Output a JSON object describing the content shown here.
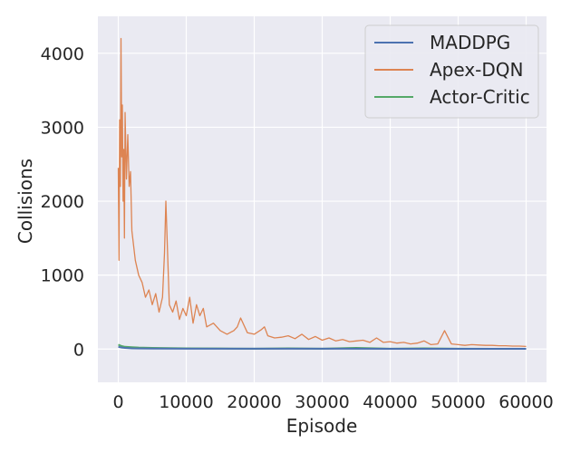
{
  "chart_data": {
    "type": "line",
    "xlabel": "Episode",
    "ylabel": "Collisions",
    "xlim": [
      -3000,
      63000
    ],
    "ylim": [
      -450,
      4500
    ],
    "x_ticks": [
      0,
      10000,
      20000,
      30000,
      40000,
      50000,
      60000
    ],
    "x_tick_labels": [
      "0",
      "10000",
      "20000",
      "30000",
      "40000",
      "50000",
      "60000"
    ],
    "y_ticks": [
      0,
      1000,
      2000,
      3000,
      4000
    ],
    "y_tick_labels": [
      "0",
      "1000",
      "2000",
      "3000",
      "4000"
    ],
    "grid": true,
    "legend_position": "top-right",
    "series": [
      {
        "name": "MADDPG",
        "color": "#4c72b0",
        "x": [
          0,
          500,
          1000,
          2000,
          3000,
          5000,
          10000,
          20000,
          30000,
          40000,
          50000,
          60000
        ],
        "y": [
          30,
          20,
          15,
          10,
          8,
          6,
          5,
          4,
          4,
          3,
          3,
          3
        ]
      },
      {
        "name": "Apex-DQN",
        "color": "#dd8452",
        "x": [
          0,
          100,
          200,
          300,
          400,
          500,
          600,
          700,
          800,
          900,
          1000,
          1200,
          1400,
          1600,
          1800,
          2000,
          2500,
          3000,
          3500,
          4000,
          4500,
          5000,
          5500,
          6000,
          6500,
          6800,
          7000,
          7500,
          8000,
          8500,
          9000,
          9500,
          10000,
          10500,
          11000,
          11500,
          12000,
          12500,
          13000,
          14000,
          15000,
          16000,
          17000,
          17500,
          18000,
          19000,
          20000,
          21000,
          21500,
          22000,
          23000,
          24000,
          25000,
          26000,
          27000,
          28000,
          29000,
          30000,
          31000,
          32000,
          33000,
          34000,
          35000,
          36000,
          37000,
          38000,
          39000,
          40000,
          41000,
          42000,
          43000,
          44000,
          45000,
          46000,
          47000,
          48000,
          49000,
          50000,
          51000,
          52000,
          53000,
          54000,
          55000,
          56000,
          57000,
          58000,
          59000,
          60000
        ],
        "y": [
          2450,
          1200,
          3100,
          2200,
          4200,
          2600,
          3300,
          2000,
          2700,
          1500,
          3200,
          2300,
          2900,
          2200,
          2400,
          1600,
          1200,
          1000,
          900,
          700,
          800,
          600,
          750,
          500,
          700,
          1300,
          2000,
          600,
          500,
          650,
          400,
          550,
          450,
          700,
          350,
          600,
          450,
          550,
          300,
          350,
          250,
          200,
          250,
          300,
          420,
          220,
          200,
          260,
          300,
          180,
          150,
          160,
          180,
          140,
          200,
          130,
          170,
          120,
          150,
          110,
          130,
          100,
          110,
          120,
          90,
          150,
          90,
          100,
          80,
          90,
          70,
          80,
          110,
          60,
          70,
          250,
          70,
          60,
          50,
          60,
          55,
          50,
          50,
          45,
          45,
          40,
          40,
          35
        ]
      },
      {
        "name": "Actor-Critic",
        "color": "#55a868",
        "x": [
          0,
          500,
          1000,
          2000,
          3000,
          5000,
          10000,
          15000,
          20000,
          25000,
          30000,
          35000,
          40000,
          45000,
          50000,
          55000,
          60000
        ],
        "y": [
          60,
          40,
          30,
          25,
          20,
          15,
          10,
          8,
          5,
          10,
          5,
          15,
          5,
          10,
          4,
          3,
          3
        ]
      }
    ]
  }
}
